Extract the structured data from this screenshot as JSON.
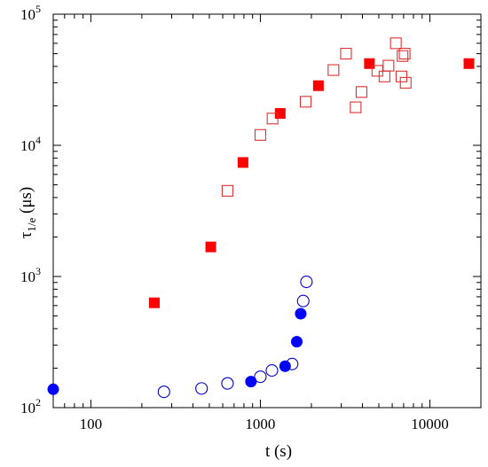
{
  "chart_data": {
    "type": "scatter",
    "xlabel": "t (s)",
    "ylabel": {
      "base": "τ",
      "sub": "1/e",
      "unit": " (μs)"
    },
    "xscale": "log",
    "yscale": "log",
    "xlim": [
      60,
      20000
    ],
    "ylim": [
      100,
      100000
    ],
    "x_ticks": [
      {
        "value": 100,
        "label": "100"
      },
      {
        "value": 1000,
        "label": "1000"
      },
      {
        "value": 10000,
        "label": "10000"
      }
    ],
    "y_ticks": [
      {
        "value": 100,
        "base": "10",
        "exp": "2"
      },
      {
        "value": 1000,
        "base": "10",
        "exp": "3"
      },
      {
        "value": 10000,
        "base": "10",
        "exp": "4"
      },
      {
        "value": 100000,
        "base": "10",
        "exp": "5"
      }
    ],
    "grid": false,
    "legend": "none",
    "series": [
      {
        "marker": "square",
        "filled": true,
        "color": "#ff0000",
        "points": [
          [
            237,
            630
          ],
          [
            510,
            1680
          ],
          [
            790,
            7400
          ],
          [
            1310,
            17500
          ],
          [
            2200,
            28500
          ],
          [
            4400,
            42000
          ],
          [
            17000,
            42000
          ]
        ]
      },
      {
        "marker": "square",
        "filled": false,
        "color": "#e03030",
        "points": [
          [
            640,
            4500
          ],
          [
            1000,
            12000
          ],
          [
            1180,
            16000
          ],
          [
            1850,
            21500
          ],
          [
            2700,
            37500
          ],
          [
            3200,
            50000
          ],
          [
            3650,
            19500
          ],
          [
            3950,
            25500
          ],
          [
            4900,
            37000
          ],
          [
            5400,
            33500
          ],
          [
            5700,
            40500
          ],
          [
            6300,
            60000
          ],
          [
            6800,
            33500
          ],
          [
            6900,
            48000
          ],
          [
            7100,
            50000
          ],
          [
            7200,
            30000
          ]
        ]
      },
      {
        "marker": "circle",
        "filled": true,
        "color": "#0000ff",
        "points": [
          [
            60,
            138
          ],
          [
            880,
            158
          ],
          [
            1400,
            207
          ],
          [
            1640,
            318
          ],
          [
            1730,
            520
          ]
        ]
      },
      {
        "marker": "circle",
        "filled": false,
        "color": "#0000cc",
        "points": [
          [
            270,
            132
          ],
          [
            450,
            140
          ],
          [
            640,
            153
          ],
          [
            1000,
            172
          ],
          [
            1170,
            192
          ],
          [
            1540,
            215
          ],
          [
            1790,
            650
          ],
          [
            1870,
            910
          ]
        ]
      }
    ]
  }
}
